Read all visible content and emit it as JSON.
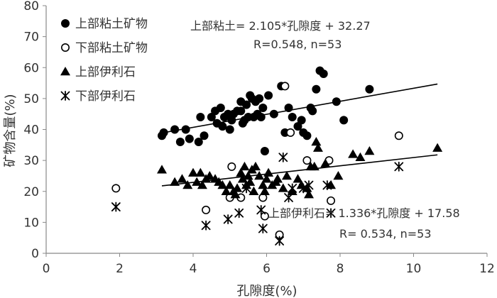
{
  "chart_data": {
    "type": "scatter",
    "title": "",
    "xlabel": "孔隙度(%)",
    "ylabel": "矿物含量(%)",
    "xlim": [
      0,
      12
    ],
    "ylim": [
      0,
      80
    ],
    "x_ticks": [
      0,
      2,
      4,
      6,
      8,
      10,
      12
    ],
    "y_ticks": [
      0,
      10,
      20,
      30,
      40,
      50,
      60,
      70,
      80
    ],
    "grid": false,
    "legend_position": "top-left",
    "series": [
      {
        "name": "上部粘土矿物",
        "marker": "filled-circle",
        "color": "#000000",
        "x": [
          3.15,
          3.2,
          3.5,
          3.65,
          3.8,
          3.9,
          4.15,
          4.2,
          4.3,
          4.5,
          4.6,
          4.65,
          4.75,
          4.8,
          4.85,
          4.95,
          5.0,
          5.05,
          5.1,
          5.2,
          5.3,
          5.3,
          5.35,
          5.4,
          5.45,
          5.5,
          5.55,
          5.6,
          5.65,
          5.7,
          5.75,
          5.8,
          5.85,
          5.9,
          5.95,
          6.05,
          6.2,
          6.4,
          6.5,
          6.6,
          6.7,
          6.85,
          6.95,
          7.0,
          7.1,
          7.2,
          7.25,
          7.35,
          7.45,
          7.55,
          7.9,
          8.1,
          8.8
        ],
        "y": [
          38,
          39,
          40,
          36,
          40,
          37,
          36,
          44,
          38,
          44,
          46,
          42,
          47,
          41,
          44,
          45,
          40,
          43,
          45,
          46,
          46,
          49,
          42,
          43,
          48,
          44,
          51,
          50,
          44,
          49,
          45,
          50,
          44,
          47,
          33,
          51,
          45,
          54,
          39,
          47,
          44,
          41,
          43,
          39,
          38,
          47,
          46,
          53,
          59,
          58,
          49,
          43,
          53
        ]
      },
      {
        "name": "下部粘土矿物",
        "marker": "open-circle",
        "color": "#000000",
        "x": [
          1.9,
          4.35,
          5.0,
          5.05,
          5.3,
          5.9,
          5.95,
          6.35,
          6.5,
          6.65,
          7.1,
          7.7,
          7.75,
          9.6
        ],
        "y": [
          21,
          14,
          18,
          28,
          18,
          18,
          12,
          6,
          54,
          39,
          30,
          30,
          17,
          38
        ]
      },
      {
        "name": "上部伊利石",
        "marker": "filled-triangle",
        "color": "#000000",
        "x": [
          3.15,
          3.5,
          3.7,
          3.85,
          4.0,
          4.1,
          4.2,
          4.35,
          4.45,
          4.6,
          4.7,
          4.8,
          4.9,
          5.0,
          5.1,
          5.15,
          5.2,
          5.3,
          5.35,
          5.4,
          5.45,
          5.55,
          5.6,
          5.65,
          5.7,
          5.8,
          5.9,
          5.95,
          6.05,
          6.15,
          6.3,
          6.45,
          6.55,
          6.7,
          6.85,
          6.95,
          7.1,
          7.15,
          7.2,
          7.3,
          7.35,
          7.4,
          7.6,
          7.75,
          7.95,
          8.35,
          8.55,
          8.8,
          10.65,
          6.0,
          6.25,
          5.5,
          4.25
        ],
        "y": [
          27,
          23,
          24,
          22,
          26,
          23,
          26,
          24,
          25,
          24,
          23,
          22,
          20,
          22,
          20,
          19,
          21,
          26,
          24,
          28,
          22,
          23,
          27,
          20,
          28,
          25,
          22,
          20,
          26,
          22,
          24,
          21,
          25,
          20,
          24,
          22,
          21,
          19,
          28,
          28,
          36,
          34,
          29,
          22,
          25,
          32,
          31,
          33,
          34,
          24,
          23,
          25,
          22
        ]
      },
      {
        "name": "下部伊利石",
        "marker": "asterisk",
        "color": "#000000",
        "x": [
          1.9,
          4.35,
          4.95,
          5.25,
          5.45,
          5.85,
          5.9,
          6.35,
          6.45,
          6.6,
          6.7,
          7.0,
          7.15,
          7.65,
          7.75,
          9.6
        ],
        "y": [
          15,
          9,
          11,
          13,
          21,
          14,
          8,
          4,
          31,
          18,
          21,
          21,
          22,
          22,
          13,
          28
        ]
      }
    ],
    "trendlines": [
      {
        "series": "上部粘土矿物",
        "slope": 2.105,
        "intercept": 32.27,
        "x_range": [
          3.15,
          10.65
        ],
        "equation": "上部粘土= 2.105*孔隙度 + 32.27",
        "stats": "R=0.548, n=53"
      },
      {
        "series": "上部伊利石",
        "slope": 1.336,
        "intercept": 17.58,
        "x_range": [
          3.15,
          10.65
        ],
        "equation": "上部伊利石= 1.336*孔隙度 + 17.58",
        "stats": "R= 0.534, n=53"
      }
    ]
  }
}
